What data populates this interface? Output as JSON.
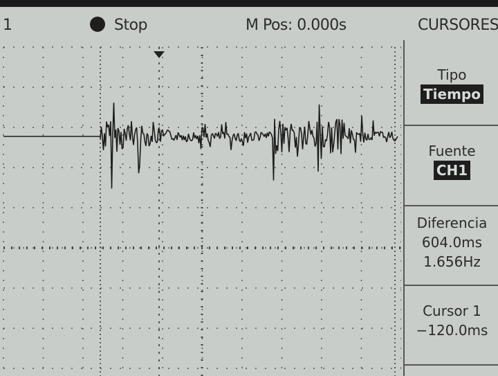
{
  "header": {
    "channel": "1",
    "status": "Stop",
    "position": "M Pos: 0.000s",
    "menu_title": "CURSORES"
  },
  "menu": {
    "type": {
      "label": "Tipo",
      "value": "Tiempo"
    },
    "source": {
      "label": "Fuente",
      "value": "CH1"
    },
    "difference": {
      "label": "Diferencia",
      "time": "604.0ms",
      "frequency": "1.656Hz"
    },
    "cursor1": {
      "label": "Cursor 1",
      "value": "−120.0ms"
    }
  }
}
